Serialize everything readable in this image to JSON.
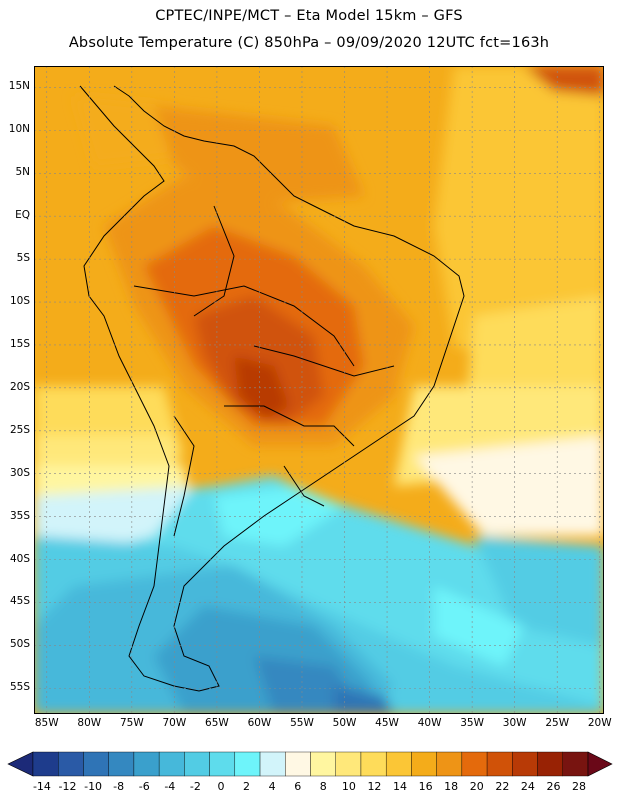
{
  "title": {
    "line1": "CPTEC/INPE/MCT –  Eta Model 15km – GFS",
    "line2": "Absolute Temperature (C) 850hPa – 09/09/2020 12UTC fct=163h"
  },
  "map": {
    "region": "South America",
    "lat_labels": [
      "15N",
      "10N",
      "5N",
      "EQ",
      "5S",
      "10S",
      "15S",
      "20S",
      "25S",
      "30S",
      "35S",
      "40S",
      "45S",
      "50S",
      "55S"
    ],
    "lon_labels": [
      "85W",
      "80W",
      "75W",
      "70W",
      "65W",
      "60W",
      "55W",
      "50W",
      "45W",
      "40W",
      "35W",
      "30W",
      "25W",
      "20W"
    ],
    "lat_range": [
      17.5,
      -58
    ],
    "lon_range": [
      -86.5,
      -19.5
    ]
  },
  "colorbar": {
    "labels": [
      "-14",
      "-12",
      "-10",
      "-8",
      "-6",
      "-4",
      "-2",
      "0",
      "2",
      "4",
      "6",
      "8",
      "10",
      "12",
      "14",
      "16",
      "18",
      "20",
      "22",
      "24",
      "26",
      "28"
    ],
    "colors": [
      "#1e3c8c",
      "#2a5aa6",
      "#2f74b6",
      "#3488c0",
      "#3aa0cc",
      "#46b8da",
      "#52cce4",
      "#5edcec",
      "#6ef4fa",
      "#d2f4fa",
      "#fff8e4",
      "#fff6a0",
      "#ffe87a",
      "#fedc5a",
      "#fbc636",
      "#f4ac1a",
      "#ee9416",
      "#e46a0c",
      "#d05208",
      "#b83a06",
      "#982204",
      "#781410"
    ],
    "min_color": "#1c2a78",
    "max_color": "#6a0818"
  }
}
